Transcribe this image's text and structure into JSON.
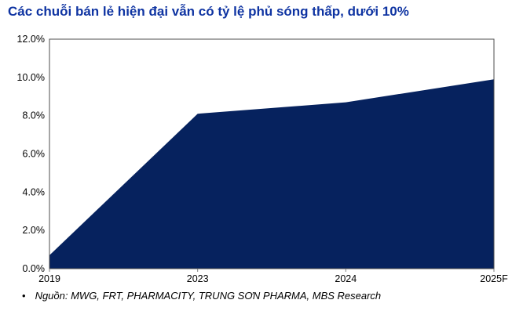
{
  "title": "Các chuỗi bán lẻ hiện đại vẫn có tỷ lệ phủ sóng thấp, dưới 10%",
  "source": {
    "bullet": "•",
    "text": "Nguồn: MWG, FRT, PHARMACITY, TRUNG SƠN PHARMA, MBS Research"
  },
  "colors": {
    "area_fill": "#06225e",
    "title_text": "#0f34a2",
    "axis_line": "#4d4d4d",
    "tick_mark": "#7f7f7f",
    "tick_label": "#000000"
  },
  "chart_data": {
    "type": "area",
    "title": "Các chuỗi bán lẻ hiện đại vẫn có tỷ lệ phủ sóng thấp, dưới 10%",
    "categories": [
      "2019",
      "2023",
      "2024",
      "2025F"
    ],
    "values": [
      0.7,
      8.1,
      8.7,
      9.9
    ],
    "unit": "%",
    "xlabel": "",
    "ylabel": "",
    "ylim": [
      0,
      12
    ],
    "ytick_step": 2,
    "ytick_labels": [
      "0.0%",
      "2.0%",
      "4.0%",
      "6.0%",
      "8.0%",
      "10.0%",
      "12.0%"
    ],
    "grid": false,
    "legend": "none",
    "plot_border": true
  }
}
